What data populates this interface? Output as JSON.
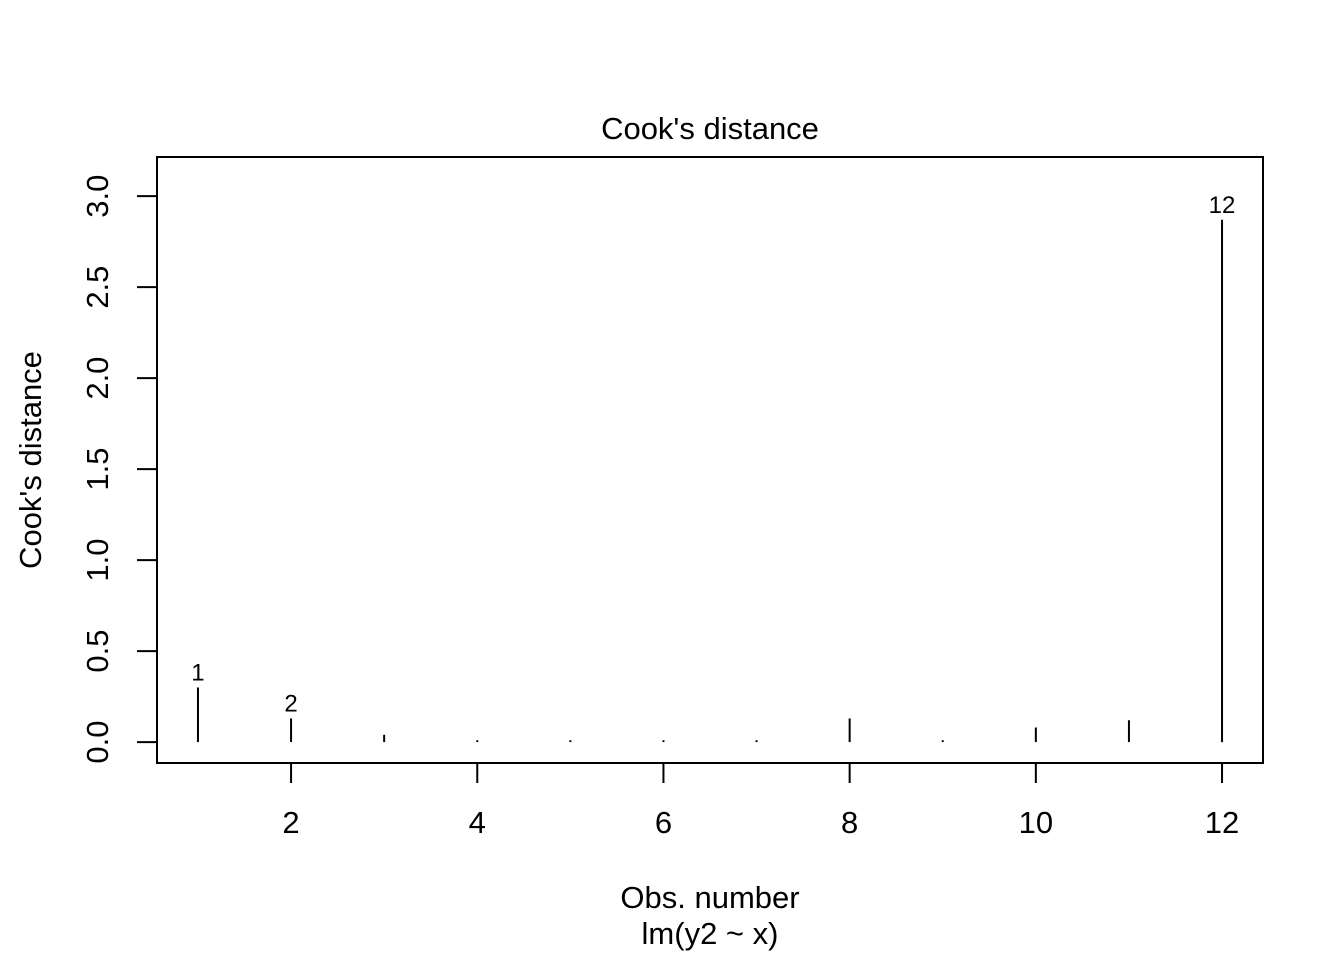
{
  "chart_data": {
    "type": "bar",
    "title": "Cook's distance",
    "xlabel": "Obs. number",
    "sub_caption": "lm(y2 ~ x)",
    "ylabel": "Cook's distance",
    "x": [
      1,
      2,
      3,
      4,
      5,
      6,
      7,
      8,
      9,
      10,
      11,
      12
    ],
    "values": [
      0.3,
      0.13,
      0.04,
      0.01,
      0.01,
      0.01,
      0.01,
      0.13,
      0.01,
      0.08,
      0.12,
      2.87
    ],
    "labeled_points": [
      {
        "obs": 1,
        "label": "1"
      },
      {
        "obs": 2,
        "label": "2"
      },
      {
        "obs": 12,
        "label": "12"
      }
    ],
    "x_ticks": [
      2,
      4,
      6,
      8,
      10,
      12
    ],
    "x_tick_labels": [
      "2",
      "4",
      "6",
      "8",
      "10",
      "12"
    ],
    "y_ticks": [
      0.0,
      0.5,
      1.0,
      1.5,
      2.0,
      2.5,
      3.0
    ],
    "y_tick_labels": [
      "0.0",
      "0.5",
      "1.0",
      "1.5",
      "2.0",
      "2.5",
      "3.0"
    ],
    "xlim": [
      0.56,
      12.44
    ],
    "ylim": [
      -0.115,
      3.215
    ],
    "grid": false,
    "legend": null,
    "line_color": "#000000",
    "background_color": "#ffffff"
  }
}
